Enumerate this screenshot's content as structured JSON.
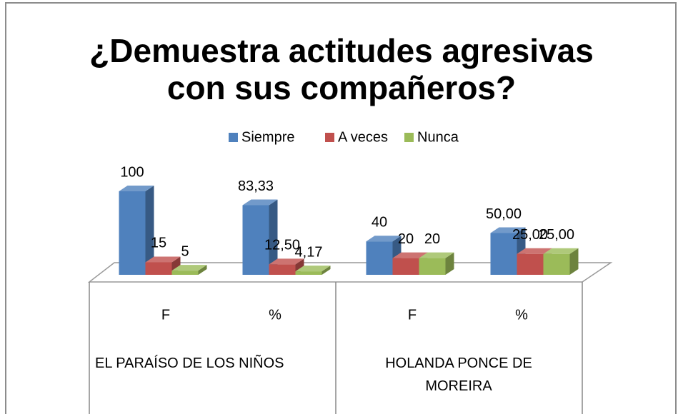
{
  "chart_data": {
    "type": "bar3d",
    "title": "¿Demuestra actitudes agresivas con sus compañeros?",
    "categories": [
      "F",
      "%",
      "F",
      "%"
    ],
    "category_groups": [
      "EL PARAÍSO DE LOS NIÑOS",
      "HOLANDA PONCE DE MOREIRA"
    ],
    "series": [
      {
        "name": "Siempre",
        "color": "#4f81bd",
        "values": [
          100,
          83.33,
          40,
          50
        ],
        "value_labels": [
          "100",
          "83,33",
          "40",
          "50,00"
        ]
      },
      {
        "name": "A veces",
        "color": "#c0504d",
        "values": [
          15,
          12.5,
          20,
          25
        ],
        "value_labels": [
          "15",
          "12,50",
          "20",
          "25,00"
        ]
      },
      {
        "name": "Nunca",
        "color": "#9bbb59",
        "values": [
          5,
          4.17,
          20,
          25
        ],
        "value_labels": [
          "5",
          "4,17",
          "20",
          "25,00"
        ]
      }
    ],
    "legend": "top"
  }
}
